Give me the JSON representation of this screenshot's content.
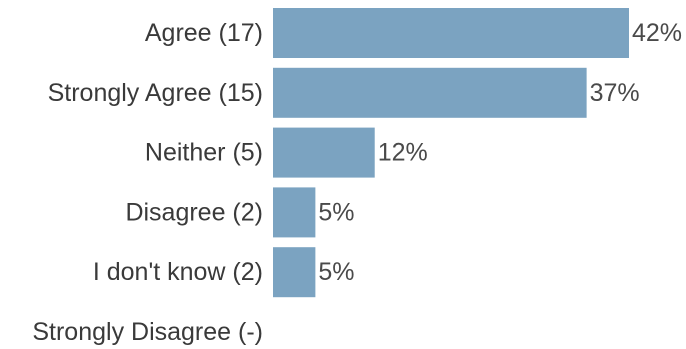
{
  "chart_data": {
    "type": "bar",
    "orientation": "horizontal",
    "categories": [
      "Agree (17)",
      "Strongly Agree (15)",
      "Neither (5)",
      "Disagree (2)",
      "I don't know (2)",
      "Strongly Disagree (-)"
    ],
    "values": [
      42,
      37,
      12,
      5,
      5,
      0
    ],
    "value_labels": [
      "42%",
      "37%",
      "12%",
      "5%",
      "5%",
      ""
    ],
    "xlim": [
      0,
      42
    ],
    "grid": false,
    "legend": "none",
    "bar_color": "#7ba3c1"
  }
}
